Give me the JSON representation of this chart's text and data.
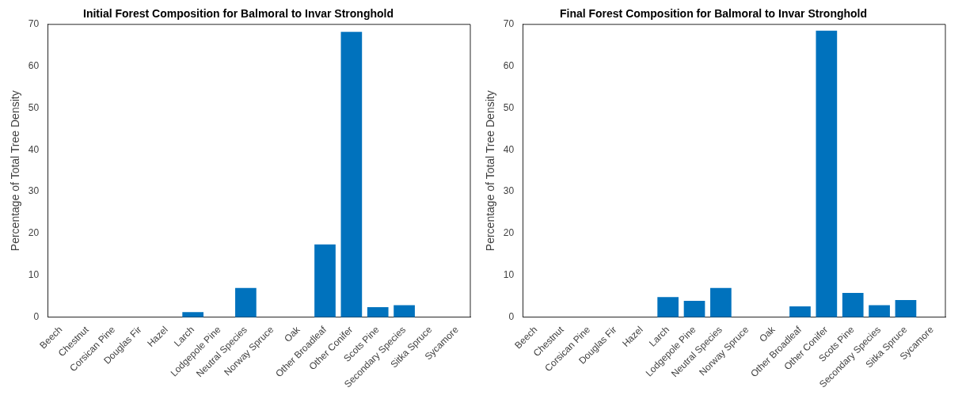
{
  "chart_data": [
    {
      "type": "bar",
      "title": "Initial Forest Composition for Balmoral to Invar Stronghold",
      "ylabel": "Percentage of Total Tree Density",
      "categories": [
        "Beech",
        "Chestnut",
        "Corsican Pine",
        "Douglas Fir",
        "Hazel",
        "Larch",
        "Lodgepole Pine",
        "Neutral Species",
        "Norway Spruce",
        "Oak",
        "Other Broadleaf",
        "Other Conifer",
        "Scots Pine",
        "Secondary Species",
        "Sitka Spruce",
        "Sycamore"
      ],
      "values": [
        0,
        0,
        0,
        0,
        0,
        1.2,
        0,
        7.0,
        0,
        0,
        17.4,
        68.2,
        2.4,
        2.9,
        0,
        0
      ],
      "color": "#0072bd",
      "ylim": [
        0,
        70
      ],
      "yticks": [
        0,
        10,
        20,
        30,
        40,
        50,
        60,
        70
      ],
      "grid": false,
      "legend": false
    },
    {
      "type": "bar",
      "title": "Final Forest Composition for Balmoral to Invar Stronghold",
      "ylabel": "Percentage of Total Tree Density",
      "categories": [
        "Beech",
        "Chestnut",
        "Corsican Pine",
        "Douglas Fir",
        "Hazel",
        "Larch",
        "Lodgepole Pine",
        "Neutral Species",
        "Norway Spruce",
        "Oak",
        "Other Broadleaf",
        "Other Conifer",
        "Scots Pine",
        "Secondary Species",
        "Sitka Spruce",
        "Sycamore"
      ],
      "values": [
        0,
        0,
        0,
        0,
        0,
        4.8,
        3.9,
        7.0,
        0,
        0,
        2.6,
        68.5,
        5.8,
        2.9,
        4.1,
        0
      ],
      "color": "#0072bd",
      "ylim": [
        0,
        70
      ],
      "yticks": [
        0,
        10,
        20,
        30,
        40,
        50,
        60,
        70
      ],
      "grid": false,
      "legend": false
    }
  ]
}
